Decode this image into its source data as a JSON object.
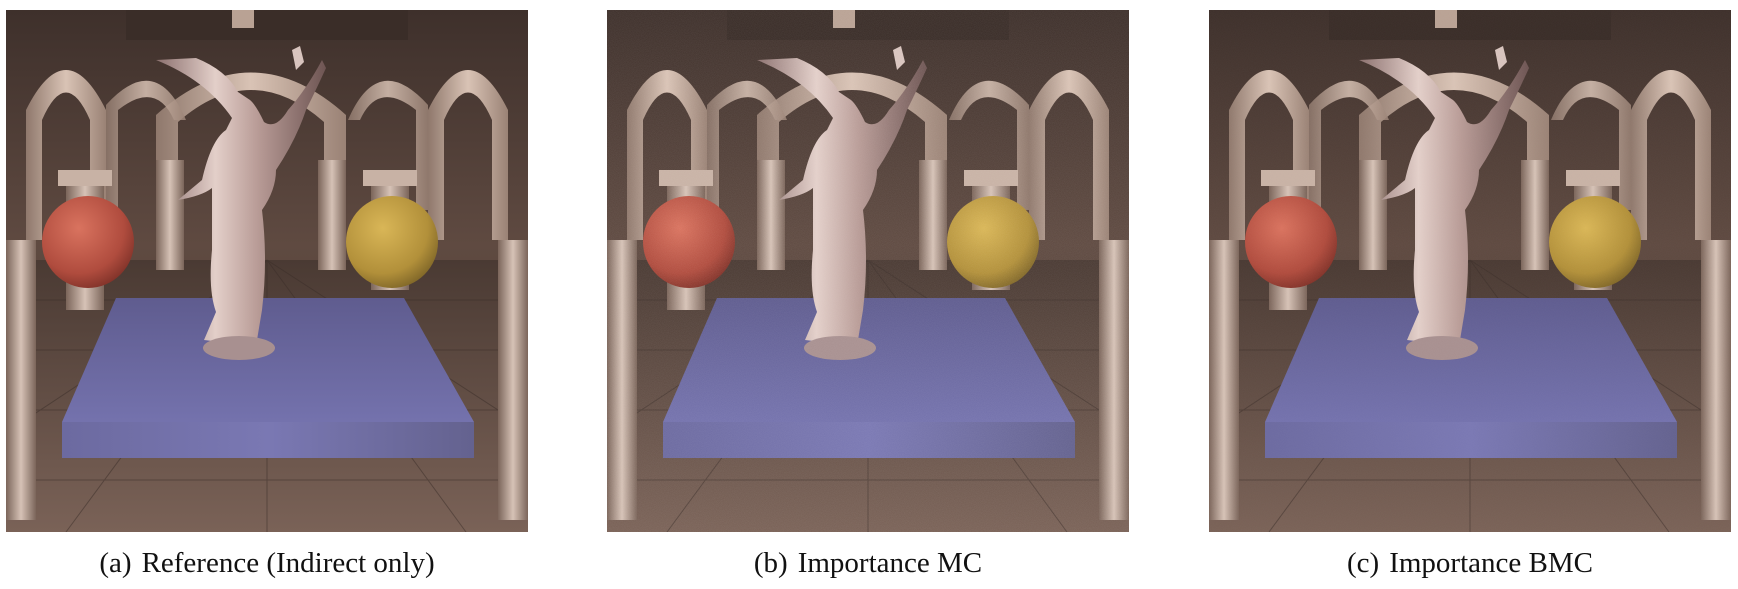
{
  "figures": [
    {
      "label": "(a)",
      "caption": "Reference (Indirect only)",
      "noise": 0.0
    },
    {
      "label": "(b)",
      "caption": "Importance MC",
      "noise": 0.55
    },
    {
      "label": "(c)",
      "caption": "Importance BMC",
      "noise": 0.3
    }
  ],
  "colors": {
    "wall": "#5a473f",
    "arch": "#cbb3a6",
    "floor": "#6a554b",
    "pedestal": "#6c6a9e",
    "sphere_left": "#c1594a",
    "sphere_right": "#c2a041",
    "statue": "#c9b2ad"
  }
}
